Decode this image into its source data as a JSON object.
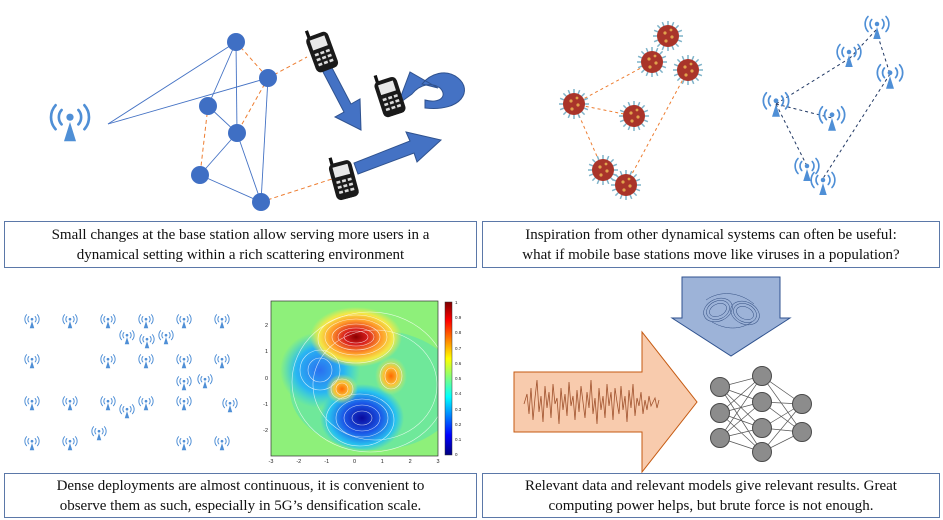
{
  "captions": {
    "top_left": {
      "line1": "Small changes at the base station allow serving more users in a",
      "line2": "dynamical setting within a rich scattering environment"
    },
    "top_right": {
      "line1": "Inspiration from other dynamical systems can often be useful:",
      "line2": "what if mobile base stations move like viruses in a population?"
    },
    "bottom_left": {
      "line1": "Dense deployments are almost continuous, it is convenient to",
      "line2": "observe them as such, especially in 5G’s densification scale."
    },
    "bottom_right": {
      "line1": "Relevant data and relevant models give relevant results. Great",
      "line2": "computing power helps, but brute force is not enough."
    }
  },
  "heatmap": {
    "x_ticks": [
      "-3",
      "-2",
      "-1",
      "0",
      "1",
      "2",
      "3"
    ],
    "y_ticks": [
      "2",
      "1",
      "0",
      "-1",
      "-2"
    ],
    "colorbar_ticks": [
      "1",
      "0.9",
      "0.8",
      "0.7",
      "0.6",
      "0.5",
      "0.4",
      "0.3",
      "0.2",
      "0.1",
      "0"
    ]
  },
  "colors": {
    "accent_blue": "#4472c4",
    "node_blue": "#3f6fc4",
    "antenna_blue": "#5b9bd5",
    "dashed_orange": "#ed7d31",
    "virus_red": "#a9342a",
    "arrow_peach": "#f8cbad",
    "arrow_steel": "#9db3d8"
  }
}
